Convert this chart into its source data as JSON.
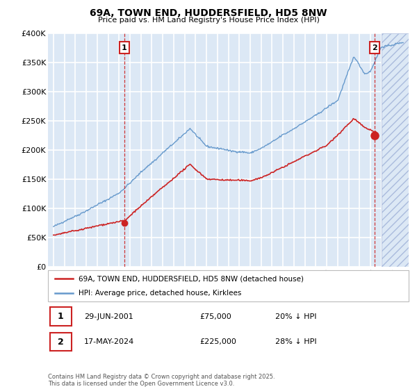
{
  "title": "69A, TOWN END, HUDDERSFIELD, HD5 8NW",
  "subtitle": "Price paid vs. HM Land Registry's House Price Index (HPI)",
  "ylim": [
    0,
    400000
  ],
  "xlim_start": 1994.5,
  "xlim_end": 2027.5,
  "yticks": [
    0,
    50000,
    100000,
    150000,
    200000,
    250000,
    300000,
    350000,
    400000
  ],
  "ytick_labels": [
    "£0",
    "£50K",
    "£100K",
    "£150K",
    "£200K",
    "£250K",
    "£300K",
    "£350K",
    "£400K"
  ],
  "bg_color": "#dce8f5",
  "grid_color": "#ffffff",
  "line_color_hpi": "#6699cc",
  "line_color_price": "#cc2222",
  "marker_color": "#cc2222",
  "sale1_year": 2001.49,
  "sale1_price": 75000,
  "sale2_year": 2024.38,
  "sale2_price": 225000,
  "vline1_year": 2001.49,
  "vline2_year": 2024.38,
  "legend_label_red": "69A, TOWN END, HUDDERSFIELD, HD5 8NW (detached house)",
  "legend_label_blue": "HPI: Average price, detached house, Kirklees",
  "annotation1_label": "1",
  "annotation2_label": "2",
  "footer": "Contains HM Land Registry data © Crown copyright and database right 2025.\nThis data is licensed under the Open Government Licence v3.0.",
  "row1_num": "1",
  "row1_date": "29-JUN-2001",
  "row1_price": "£75,000",
  "row1_hpi": "20% ↓ HPI",
  "row2_num": "2",
  "row2_date": "17-MAY-2024",
  "row2_price": "£225,000",
  "row2_hpi": "28% ↓ HPI"
}
